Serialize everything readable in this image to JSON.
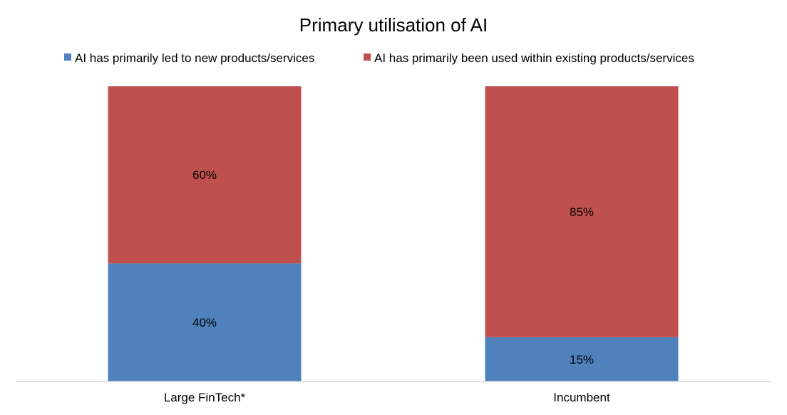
{
  "chart_data": {
    "type": "bar",
    "stacked": true,
    "title": "Primary utilisation of AI",
    "categories": [
      "Large FinTech*",
      "Incumbent"
    ],
    "series": [
      {
        "name": "AI has primarily led to new products/services",
        "values": [
          40,
          15
        ],
        "labels": [
          "40%",
          "15%"
        ],
        "color": "#4f81bd"
      },
      {
        "name": "AI has primarily been used within existing products/services",
        "values": [
          60,
          85
        ],
        "labels": [
          "60%",
          "85%"
        ],
        "color": "#c0504d"
      }
    ],
    "ylim": [
      0,
      100
    ],
    "legend_position": "top",
    "grid": false
  }
}
